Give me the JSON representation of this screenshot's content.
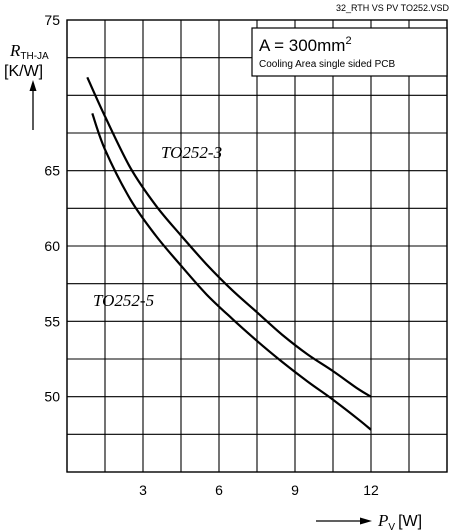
{
  "file_id": "32_RTH VS PV TO252.VSD",
  "chart_data": {
    "type": "line",
    "ylabel": {
      "symbol": "R",
      "subscript": "TH-JA",
      "unit": "[K/W]"
    },
    "xlabel": {
      "symbol": "P",
      "subscript": "V",
      "unit": "[W]"
    },
    "x_ticks": [
      "3",
      "6",
      "9",
      "12"
    ],
    "y_ticks": [
      "75",
      "65",
      "60",
      "55",
      "50"
    ],
    "xlim": [
      0,
      15
    ],
    "ylim": [
      45,
      75
    ],
    "grid": true,
    "annotation": {
      "area_prefix": "A = 300mm",
      "area_exponent": "2",
      "description": "Cooling Area single sided PCB"
    },
    "series": [
      {
        "name": "TO252-3",
        "x": [
          0.8,
          1.5,
          2.5,
          3.5,
          4.5,
          5.5,
          6.5,
          7.5,
          8.5,
          9.5,
          10.5,
          11.5,
          12
        ],
        "y": [
          71.2,
          68.6,
          65.2,
          62.7,
          60.7,
          58.8,
          57.1,
          55.6,
          54.1,
          52.8,
          51.7,
          50.5,
          50.0
        ]
      },
      {
        "name": "TO252-5",
        "x": [
          1.0,
          1.5,
          2.5,
          3.5,
          4.5,
          5.5,
          6.5,
          7.5,
          8.5,
          9.5,
          10.5,
          11.5,
          12
        ],
        "y": [
          68.8,
          66.4,
          63.1,
          60.7,
          58.7,
          56.8,
          55.2,
          53.7,
          52.3,
          51.0,
          49.8,
          48.5,
          47.8
        ]
      }
    ]
  }
}
